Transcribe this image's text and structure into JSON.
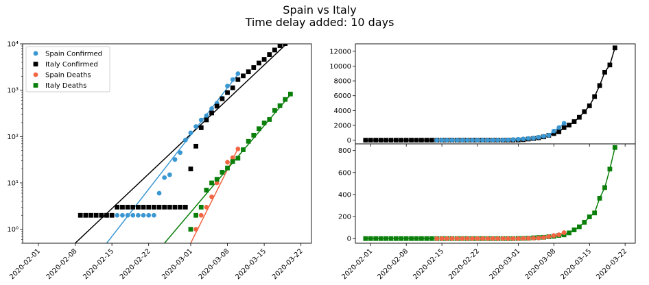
{
  "figure": {
    "title_lines": [
      "Spain vs Italy",
      "Time delay added: 10 days"
    ]
  },
  "colors": {
    "spain_confirmed": "#3a97d2",
    "italy_confirmed": "#000000",
    "spain_deaths": "#f26542",
    "italy_deaths": "#0a7f0a"
  },
  "chart_data": [
    {
      "type": "scatter",
      "yscale": "log",
      "xlim": [
        "2020-01-29",
        "2020-03-24"
      ],
      "ylim": [
        0.5,
        10000
      ],
      "x_ticks": [
        "2020-02-01",
        "2020-02-08",
        "2020-02-15",
        "2020-02-22",
        "2020-03-01",
        "2020-03-08",
        "2020-03-15",
        "2020-03-22"
      ],
      "y_ticks": [
        1,
        10,
        100,
        1000,
        10000
      ],
      "y_tick_labels": [
        "10⁰",
        "10¹",
        "10²",
        "10³",
        "10⁴"
      ],
      "legend_position": "upper-left",
      "legend": [
        {
          "label": "Spain Confirmed",
          "marker": "circle",
          "color_key": "spain_confirmed"
        },
        {
          "label": "Italy Confirmed",
          "marker": "square",
          "color_key": "italy_confirmed"
        },
        {
          "label": "Spain Deaths",
          "marker": "circle",
          "color_key": "spain_deaths"
        },
        {
          "label": "Italy Deaths",
          "marker": "square",
          "color_key": "italy_deaths"
        }
      ],
      "series": [
        {
          "name": "Spain Confirmed",
          "marker": "circle",
          "color_key": "spain_confirmed",
          "points": [
            [
              "2020-02-15",
              2
            ],
            [
              "2020-02-16",
              2
            ],
            [
              "2020-02-17",
              2
            ],
            [
              "2020-02-18",
              2
            ],
            [
              "2020-02-19",
              2
            ],
            [
              "2020-02-20",
              2
            ],
            [
              "2020-02-21",
              2
            ],
            [
              "2020-02-22",
              2
            ],
            [
              "2020-02-23",
              2
            ],
            [
              "2020-02-24",
              6
            ],
            [
              "2020-02-25",
              13
            ],
            [
              "2020-02-26",
              15
            ],
            [
              "2020-02-27",
              32
            ],
            [
              "2020-02-28",
              45
            ],
            [
              "2020-02-29",
              84
            ],
            [
              "2020-03-01",
              120
            ],
            [
              "2020-03-02",
              165
            ],
            [
              "2020-03-03",
              228
            ],
            [
              "2020-03-04",
              282
            ],
            [
              "2020-03-05",
              401
            ],
            [
              "2020-03-06",
              525
            ],
            [
              "2020-03-07",
              674
            ],
            [
              "2020-03-08",
              1231
            ],
            [
              "2020-03-09",
              1695
            ],
            [
              "2020-03-10",
              2277
            ]
          ]
        },
        {
          "name": "Italy Confirmed",
          "marker": "square",
          "color_key": "italy_confirmed",
          "points": [
            [
              "2020-02-09",
              2
            ],
            [
              "2020-02-10",
              2
            ],
            [
              "2020-02-11",
              2
            ],
            [
              "2020-02-12",
              2
            ],
            [
              "2020-02-13",
              2
            ],
            [
              "2020-02-14",
              2
            ],
            [
              "2020-02-15",
              2
            ],
            [
              "2020-02-16",
              3
            ],
            [
              "2020-02-17",
              3
            ],
            [
              "2020-02-18",
              3
            ],
            [
              "2020-02-19",
              3
            ],
            [
              "2020-02-20",
              3
            ],
            [
              "2020-02-21",
              3
            ],
            [
              "2020-02-22",
              3
            ],
            [
              "2020-02-23",
              3
            ],
            [
              "2020-02-24",
              3
            ],
            [
              "2020-02-25",
              3
            ],
            [
              "2020-02-26",
              3
            ],
            [
              "2020-02-27",
              3
            ],
            [
              "2020-02-28",
              3
            ],
            [
              "2020-02-29",
              3
            ],
            [
              "2020-03-01",
              20
            ],
            [
              "2020-03-02",
              62
            ],
            [
              "2020-03-03",
              155
            ],
            [
              "2020-03-04",
              229
            ],
            [
              "2020-03-05",
              322
            ],
            [
              "2020-03-06",
              453
            ],
            [
              "2020-03-07",
              655
            ],
            [
              "2020-03-08",
              888
            ],
            [
              "2020-03-09",
              1128
            ],
            [
              "2020-03-10",
              1694
            ],
            [
              "2020-03-11",
              2036
            ],
            [
              "2020-03-12",
              2502
            ],
            [
              "2020-03-13",
              3089
            ],
            [
              "2020-03-14",
              3858
            ],
            [
              "2020-03-15",
              4636
            ],
            [
              "2020-03-16",
              5883
            ],
            [
              "2020-03-17",
              7375
            ],
            [
              "2020-03-18",
              9172
            ],
            [
              "2020-03-19",
              10149
            ],
            [
              "2020-03-20",
              12462
            ]
          ]
        },
        {
          "name": "Spain Deaths",
          "marker": "circle",
          "color_key": "spain_deaths",
          "points": [
            [
              "2020-03-02",
              1
            ],
            [
              "2020-03-03",
              2
            ],
            [
              "2020-03-04",
              3
            ],
            [
              "2020-03-05",
              5
            ],
            [
              "2020-03-06",
              10
            ],
            [
              "2020-03-07",
              17
            ],
            [
              "2020-03-08",
              28
            ],
            [
              "2020-03-09",
              35
            ],
            [
              "2020-03-10",
              54
            ]
          ]
        },
        {
          "name": "Italy Deaths",
          "marker": "square",
          "color_key": "italy_deaths",
          "points": [
            [
              "2020-03-01",
              1
            ],
            [
              "2020-03-02",
              2
            ],
            [
              "2020-03-03",
              3
            ],
            [
              "2020-03-04",
              7
            ],
            [
              "2020-03-05",
              10
            ],
            [
              "2020-03-06",
              12
            ],
            [
              "2020-03-07",
              17
            ],
            [
              "2020-03-08",
              21
            ],
            [
              "2020-03-09",
              29
            ],
            [
              "2020-03-10",
              34
            ],
            [
              "2020-03-11",
              52
            ],
            [
              "2020-03-12",
              79
            ],
            [
              "2020-03-13",
              107
            ],
            [
              "2020-03-14",
              148
            ],
            [
              "2020-03-15",
              197
            ],
            [
              "2020-03-16",
              233
            ],
            [
              "2020-03-17",
              366
            ],
            [
              "2020-03-18",
              463
            ],
            [
              "2020-03-19",
              631
            ],
            [
              "2020-03-20",
              827
            ]
          ]
        }
      ],
      "fit_lines": [
        {
          "series": "Spain Confirmed",
          "color_key": "spain_confirmed",
          "from": [
            "2020-02-14",
            0.5
          ],
          "to": [
            "2020-03-10",
            2200
          ]
        },
        {
          "series": "Italy Confirmed",
          "color_key": "italy_confirmed",
          "from": [
            "2020-02-08",
            0.5
          ],
          "to": [
            "2020-03-20",
            12000
          ]
        },
        {
          "series": "Spain Deaths",
          "color_key": "spain_deaths",
          "from": [
            "2020-03-01",
            0.5
          ],
          "to": [
            "2020-03-10",
            55
          ]
        },
        {
          "series": "Italy Deaths",
          "color_key": "italy_deaths",
          "from": [
            "2020-02-25",
            0.5
          ],
          "to": [
            "2020-03-20",
            800
          ]
        }
      ]
    },
    {
      "type": "line",
      "yscale": "linear",
      "xlim": [
        "2020-01-29",
        "2020-03-24"
      ],
      "ylim": [
        -500,
        13000
      ],
      "y_ticks": [
        0,
        2000,
        4000,
        6000,
        8000,
        10000,
        12000
      ],
      "series": [
        {
          "name": "Italy Confirmed",
          "marker": "square",
          "color_key": "italy_confirmed",
          "from_date": "2020-01-31",
          "values": [
            0,
            0,
            0,
            0,
            0,
            0,
            0,
            0,
            0,
            2,
            2,
            2,
            2,
            2,
            2,
            2,
            3,
            3,
            3,
            3,
            3,
            3,
            3,
            3,
            3,
            3,
            3,
            3,
            3,
            3,
            20,
            62,
            155,
            229,
            322,
            453,
            655,
            888,
            1128,
            1694,
            2036,
            2502,
            3089,
            3858,
            4636,
            5883,
            7375,
            9172,
            10149,
            12462
          ]
        },
        {
          "name": "Spain Confirmed",
          "marker": "circle",
          "color_key": "spain_confirmed",
          "from_date": "2020-02-14",
          "values": [
            0,
            2,
            2,
            2,
            2,
            2,
            2,
            2,
            2,
            2,
            6,
            13,
            15,
            32,
            45,
            84,
            120,
            165,
            228,
            282,
            401,
            525,
            674,
            1231,
            1695,
            2277
          ]
        }
      ]
    },
    {
      "type": "line",
      "yscale": "linear",
      "xlim": [
        "2020-01-29",
        "2020-03-24"
      ],
      "ylim": [
        -42,
        860
      ],
      "y_ticks": [
        0,
        200,
        400,
        600,
        800
      ],
      "x_ticks": [
        "2020-02-01",
        "2020-02-08",
        "2020-02-15",
        "2020-02-22",
        "2020-03-01",
        "2020-03-08",
        "2020-03-15",
        "2020-03-22"
      ],
      "series": [
        {
          "name": "Italy Deaths",
          "marker": "square",
          "color_key": "italy_deaths",
          "from_date": "2020-01-31",
          "values": [
            0,
            0,
            0,
            0,
            0,
            0,
            0,
            0,
            0,
            0,
            0,
            0,
            0,
            0,
            0,
            0,
            0,
            0,
            0,
            0,
            0,
            0,
            0,
            0,
            0,
            0,
            0,
            0,
            0,
            0,
            1,
            2,
            3,
            7,
            10,
            12,
            17,
            21,
            29,
            34,
            52,
            79,
            107,
            148,
            197,
            233,
            366,
            463,
            631,
            827
          ]
        },
        {
          "name": "Spain Deaths",
          "marker": "circle",
          "color_key": "spain_deaths",
          "from_date": "2020-02-14",
          "values": [
            0,
            0,
            0,
            0,
            0,
            0,
            0,
            0,
            0,
            0,
            0,
            0,
            0,
            0,
            0,
            0,
            0,
            1,
            2,
            3,
            5,
            10,
            17,
            28,
            35,
            54
          ]
        }
      ]
    }
  ]
}
